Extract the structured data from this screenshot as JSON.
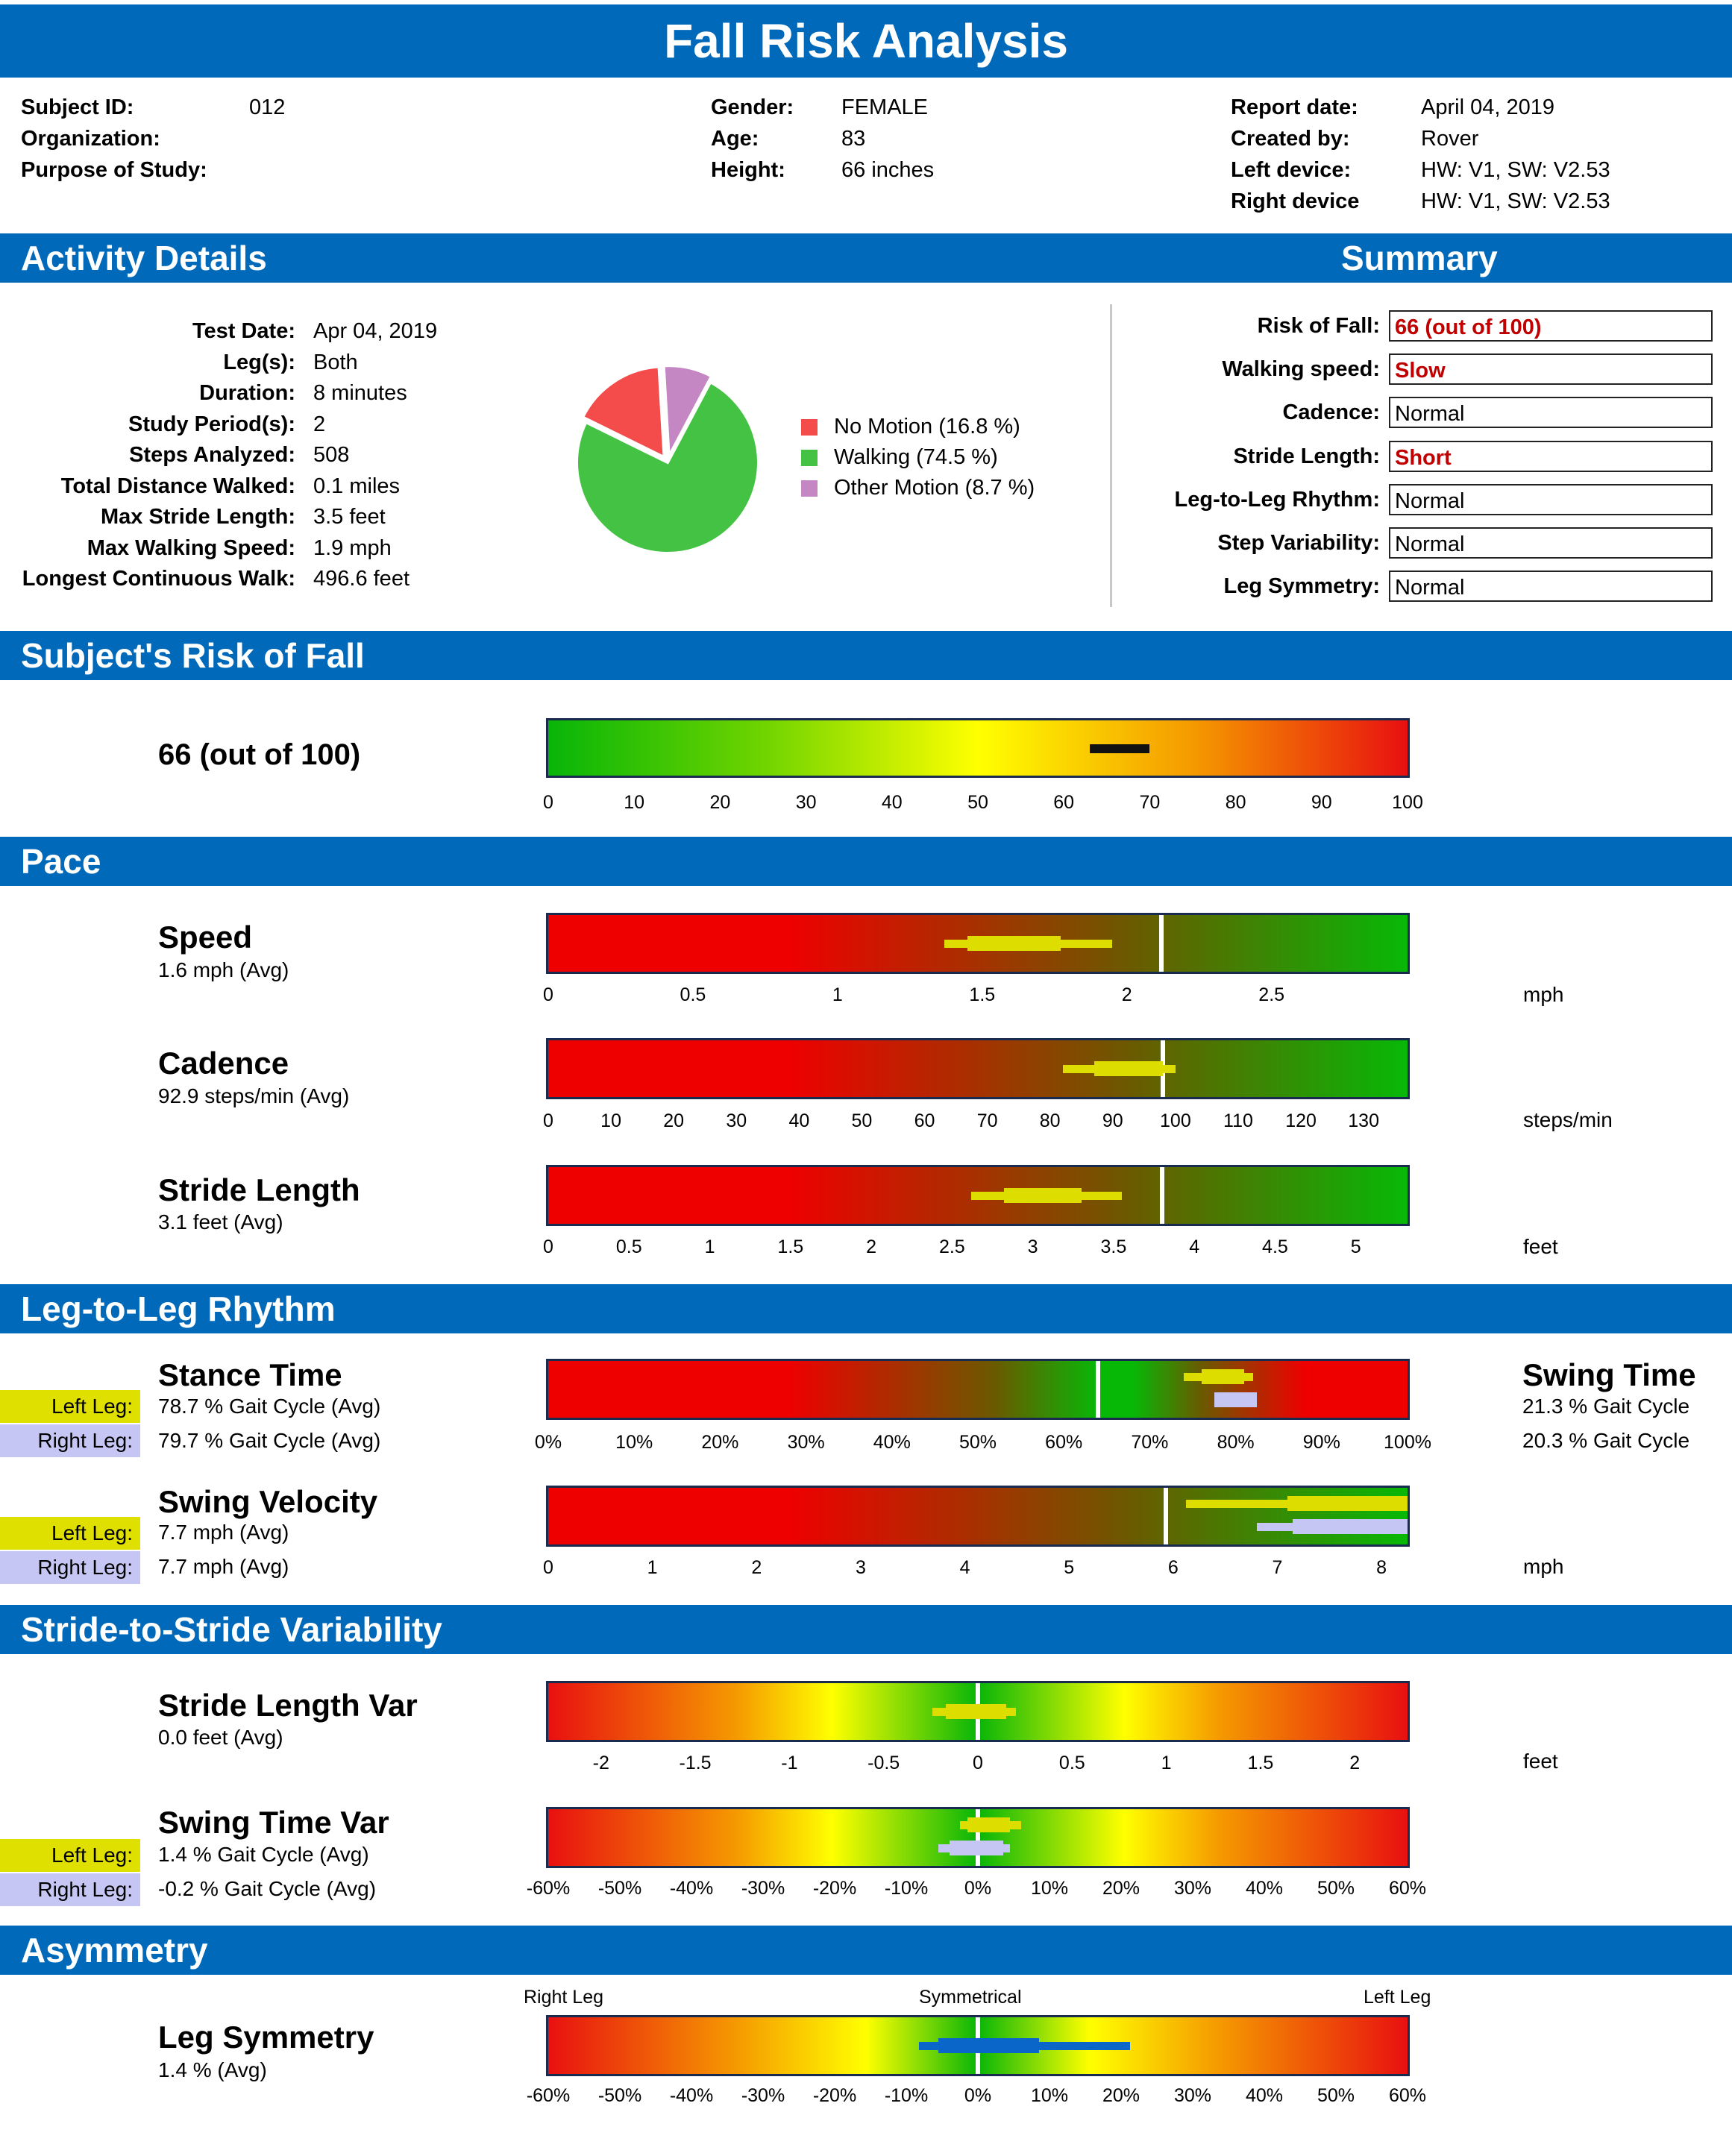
{
  "title": "Fall Risk Analysis",
  "header": {
    "col1": [
      {
        "label": "Subject ID:",
        "value": "012"
      },
      {
        "label": "Organization:",
        "value": ""
      },
      {
        "label": "Purpose of Study:",
        "value": ""
      }
    ],
    "col2": [
      {
        "label": "Gender:",
        "value": "FEMALE"
      },
      {
        "label": "Age:",
        "value": "83"
      },
      {
        "label": "Height:",
        "value": "66 inches"
      }
    ],
    "col3": [
      {
        "label": "Report date:",
        "value": "April 04, 2019"
      },
      {
        "label": "Created by:",
        "value": "Rover"
      },
      {
        "label": "Left device:",
        "value": "HW: V1, SW: V2.53"
      },
      {
        "label": "Right device",
        "value": "HW: V1, SW: V2.53"
      }
    ]
  },
  "sections": {
    "activity": "Activity Details",
    "summary": "Summary",
    "risk": "Subject's Risk of Fall",
    "pace": "Pace",
    "rhythm": "Leg-to-Leg Rhythm",
    "variability": "Stride-to-Stride Variability",
    "asymmetry": "Asymmetry"
  },
  "activity": [
    {
      "label": "Test Date:",
      "value": "Apr 04, 2019"
    },
    {
      "label": "Leg(s):",
      "value": "Both"
    },
    {
      "label": "Duration:",
      "value": "8 minutes"
    },
    {
      "label": "Study Period(s):",
      "value": "2"
    },
    {
      "label": "Steps Analyzed:",
      "value": "508"
    },
    {
      "label": "Total Distance Walked:",
      "value": "0.1 miles"
    },
    {
      "label": "Max Stride Length:",
      "value": "3.5 feet"
    },
    {
      "label": "Max Walking Speed:",
      "value": "1.9 mph"
    },
    {
      "label": "Longest Continuous Walk:",
      "value": "496.6 feet"
    }
  ],
  "pie": {
    "slices": [
      {
        "label": "No Motion (16.8 %)",
        "value": 16.8,
        "color": "#f44b4b"
      },
      {
        "label": "Walking (74.5 %)",
        "value": 74.5,
        "color": "#44c244"
      },
      {
        "label": "Other Motion (8.7 %)",
        "value": 8.7,
        "color": "#c487c4"
      }
    ]
  },
  "summary": [
    {
      "label": "Risk of Fall:",
      "value": "66 (out of 100)",
      "flag": true
    },
    {
      "label": "Walking speed:",
      "value": "Slow",
      "flag": true
    },
    {
      "label": "Cadence:",
      "value": "Normal",
      "flag": false
    },
    {
      "label": "Stride Length:",
      "value": "Short",
      "flag": true
    },
    {
      "label": "Leg-to-Leg Rhythm:",
      "value": "Normal",
      "flag": false
    },
    {
      "label": "Step Variability:",
      "value": "Normal",
      "flag": false
    },
    {
      "label": "Leg Symmetry:",
      "value": "Normal",
      "flag": false
    }
  ],
  "risk": {
    "score_text": "66 (out of 100)",
    "value": 66,
    "range_low": 63,
    "range_high": 70
  },
  "legs": {
    "left": "Left Leg:",
    "right": "Right Leg:"
  },
  "metrics": {
    "speed": {
      "title": "Speed",
      "sub": "1.6 mph (Avg)",
      "unit": "mph"
    },
    "cadence": {
      "title": "Cadence",
      "sub": "92.9 steps/min (Avg)",
      "unit": "steps/min"
    },
    "stride": {
      "title": "Stride Length",
      "sub": "3.1 feet (Avg)",
      "unit": "feet"
    },
    "stance": {
      "title": "Stance Time",
      "left": "78.7 % Gait Cycle (Avg)",
      "right": "79.7 % Gait Cycle (Avg)",
      "swing_title": "Swing Time",
      "swing_left": "21.3 % Gait Cycle",
      "swing_right": "20.3 % Gait Cycle"
    },
    "swingvel": {
      "title": "Swing Velocity",
      "left": "7.7 mph (Avg)",
      "right": "7.7 mph (Avg)",
      "unit": "mph"
    },
    "stridevar": {
      "title": "Stride Length Var",
      "sub": "0.0 feet (Avg)",
      "unit": "feet"
    },
    "swingvar": {
      "title": "Swing Time Var",
      "left": "1.4 % Gait Cycle (Avg)",
      "right": "-0.2 % Gait Cycle (Avg)"
    },
    "symmetry": {
      "title": "Leg Symmetry",
      "sub": "1.4 % (Avg)",
      "label_left": "Right Leg",
      "label_mid": "Symmetrical",
      "label_right": "Left Leg"
    }
  },
  "chart_data": [
    {
      "type": "gauge",
      "name": "risk",
      "min": 0,
      "max": 100,
      "ticks": [
        "0",
        "10",
        "20",
        "30",
        "40",
        "50",
        "60",
        "70",
        "80",
        "90",
        "100"
      ],
      "ticks_v": [
        0,
        10,
        20,
        30,
        40,
        50,
        60,
        70,
        80,
        90,
        100
      ],
      "marks": [
        {
          "lo": 63,
          "hi": 70,
          "color": "#111111"
        }
      ]
    },
    {
      "type": "gauge",
      "name": "speed",
      "min": 0,
      "max": 2.97,
      "ticks": [
        "0",
        "0.5",
        "1",
        "1.5",
        "2",
        "2.5"
      ],
      "ticks_v": [
        0,
        0.5,
        1,
        1.5,
        2,
        2.5
      ],
      "threshold": 2.12,
      "marks": [
        {
          "lo": 1.37,
          "hi": 1.95,
          "color": "#dddd00",
          "thick": false
        },
        {
          "lo": 1.45,
          "hi": 1.77,
          "color": "#dddd00",
          "thick": true
        }
      ]
    },
    {
      "type": "gauge",
      "name": "cadence",
      "min": 0,
      "max": 137,
      "ticks": [
        "0",
        "10",
        "20",
        "30",
        "40",
        "50",
        "60",
        "70",
        "80",
        "90",
        "100",
        "110",
        "120",
        "130"
      ],
      "ticks_v": [
        0,
        10,
        20,
        30,
        40,
        50,
        60,
        70,
        80,
        90,
        100,
        110,
        120,
        130
      ],
      "threshold": 98,
      "marks": [
        {
          "lo": 82,
          "hi": 100,
          "color": "#dddd00",
          "thick": false
        },
        {
          "lo": 87,
          "hi": 98,
          "color": "#dddd00",
          "thick": true
        }
      ]
    },
    {
      "type": "gauge",
      "name": "stride",
      "min": 0,
      "max": 5.32,
      "ticks": [
        "0",
        "0.5",
        "1",
        "1.5",
        "2",
        "2.5",
        "3",
        "3.5",
        "4",
        "4.5",
        "5"
      ],
      "ticks_v": [
        0,
        0.5,
        1,
        1.5,
        2,
        2.5,
        3,
        3.5,
        4,
        4.5,
        5
      ],
      "threshold": 3.8,
      "marks": [
        {
          "lo": 2.62,
          "hi": 3.55,
          "color": "#dddd00",
          "thick": false
        },
        {
          "lo": 2.82,
          "hi": 3.3,
          "color": "#dddd00",
          "thick": true
        }
      ]
    },
    {
      "type": "gauge",
      "name": "stance",
      "min": 0,
      "max": 100,
      "ticks": [
        "0%",
        "10%",
        "20%",
        "30%",
        "40%",
        "50%",
        "60%",
        "70%",
        "80%",
        "90%",
        "100%"
      ],
      "ticks_v": [
        0,
        10,
        20,
        30,
        40,
        50,
        60,
        70,
        80,
        90,
        100
      ],
      "threshold": 64,
      "marks": [
        {
          "lo": 74,
          "hi": 82,
          "color": "#dddd00",
          "thick": false,
          "row": 0
        },
        {
          "lo": 76,
          "hi": 81,
          "color": "#dddd00",
          "thick": true,
          "row": 0
        },
        {
          "lo": 77.5,
          "hi": 82.5,
          "color": "#c6c6f4",
          "thick": true,
          "row": 1
        }
      ]
    },
    {
      "type": "gauge",
      "name": "swingvel",
      "min": 0,
      "max": 8.25,
      "ticks": [
        "0",
        "1",
        "2",
        "3",
        "4",
        "5",
        "6",
        "7",
        "8"
      ],
      "ticks_v": [
        0,
        1,
        2,
        3,
        4,
        5,
        6,
        7,
        8
      ],
      "threshold": 5.93,
      "marks": [
        {
          "lo": 6.12,
          "hi": 8.25,
          "color": "#dddd00",
          "thick": false,
          "row": 0
        },
        {
          "lo": 7.1,
          "hi": 8.25,
          "color": "#dddd00",
          "thick": true,
          "row": 0
        },
        {
          "lo": 6.8,
          "hi": 8.25,
          "color": "#c6c6f4",
          "thick": false,
          "row": 1
        },
        {
          "lo": 7.15,
          "hi": 8.25,
          "color": "#c6c6f4",
          "thick": true,
          "row": 1
        }
      ]
    },
    {
      "type": "gauge",
      "name": "stridevar",
      "min": -2.28,
      "max": 2.28,
      "ticks": [
        "-2",
        "-1.5",
        "-1",
        "-0.5",
        "0",
        "0.5",
        "1",
        "1.5",
        "2"
      ],
      "ticks_v": [
        -2,
        -1.5,
        -1,
        -0.5,
        0,
        0.5,
        1,
        1.5,
        2
      ],
      "threshold": 0,
      "marks": [
        {
          "lo": -0.24,
          "hi": 0.2,
          "color": "#dddd00",
          "thick": false
        },
        {
          "lo": -0.17,
          "hi": 0.15,
          "color": "#dddd00",
          "thick": true
        }
      ]
    },
    {
      "type": "gauge",
      "name": "swingvar",
      "min": -60,
      "max": 60,
      "ticks": [
        "-60%",
        "-50%",
        "-40%",
        "-30%",
        "-20%",
        "-10%",
        "0%",
        "10%",
        "20%",
        "30%",
        "40%",
        "50%",
        "60%"
      ],
      "ticks_v": [
        -60,
        -50,
        -40,
        -30,
        -20,
        -10,
        0,
        10,
        20,
        30,
        40,
        50,
        60
      ],
      "threshold": 0,
      "marks": [
        {
          "lo": -2.5,
          "hi": 6,
          "color": "#dddd00",
          "thick": false,
          "row": 0
        },
        {
          "lo": -1.5,
          "hi": 4.5,
          "color": "#dddd00",
          "thick": true,
          "row": 0
        },
        {
          "lo": -5.5,
          "hi": 4.5,
          "color": "#c6c6f4",
          "thick": false,
          "row": 1
        },
        {
          "lo": -4,
          "hi": 3.5,
          "color": "#c6c6f4",
          "thick": true,
          "row": 1
        }
      ]
    },
    {
      "type": "gauge",
      "name": "symmetry",
      "min": -60,
      "max": 60,
      "ticks": [
        "-60%",
        "-50%",
        "-40%",
        "-30%",
        "-20%",
        "-10%",
        "0%",
        "10%",
        "20%",
        "30%",
        "40%",
        "50%",
        "60%"
      ],
      "ticks_v": [
        -60,
        -50,
        -40,
        -30,
        -20,
        -10,
        0,
        10,
        20,
        30,
        40,
        50,
        60
      ],
      "threshold": 0,
      "marks": [
        {
          "lo": -8.2,
          "hi": 21.2,
          "color": "#0a66c8",
          "thick": false
        },
        {
          "lo": -5.5,
          "hi": 8.5,
          "color": "#0a66c8",
          "thick": true
        }
      ]
    }
  ]
}
